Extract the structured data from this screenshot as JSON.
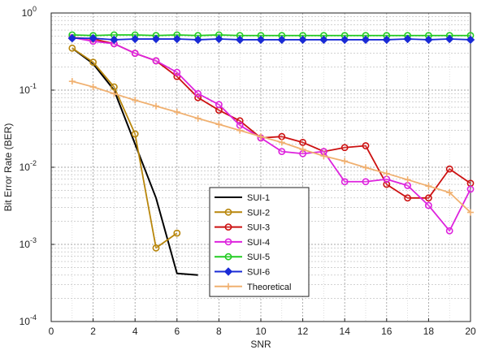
{
  "chart_data": {
    "type": "line",
    "title": "",
    "xlabel": "SNR",
    "ylabel": "Bit Error Rate (BER)",
    "xscale": "linear",
    "yscale": "log",
    "xlim": [
      0,
      20
    ],
    "ylim": [
      0.0001,
      1
    ],
    "grid": true,
    "legend_position": "lower-center",
    "x_ticks": [
      0,
      2,
      4,
      6,
      8,
      10,
      12,
      14,
      16,
      18,
      20
    ],
    "y_ticks": [
      {
        "value": 0.0001,
        "base": "10",
        "exp": "-4"
      },
      {
        "value": 0.001,
        "base": "10",
        "exp": "-3"
      },
      {
        "value": 0.01,
        "base": "10",
        "exp": "-2"
      },
      {
        "value": 0.1,
        "base": "10",
        "exp": "-1"
      },
      {
        "value": 1,
        "base": "10",
        "exp": "0"
      }
    ],
    "series": [
      {
        "name": "SUI-1",
        "color": "#000000",
        "marker": "none",
        "x": [
          1,
          2,
          3,
          4,
          5,
          6,
          7
        ],
        "y": [
          0.35,
          0.22,
          0.1,
          0.02,
          0.004,
          0.00042,
          0.0004
        ]
      },
      {
        "name": "SUI-2",
        "color": "#b8860b",
        "marker": "circle",
        "x": [
          1,
          2,
          3,
          4,
          5,
          6
        ],
        "y": [
          0.35,
          0.23,
          0.11,
          0.027,
          0.0009,
          0.0014
        ]
      },
      {
        "name": "SUI-3",
        "color": "#cc1111",
        "marker": "circle",
        "x": [
          1,
          2,
          3,
          4,
          5,
          6,
          7,
          8,
          9,
          10,
          11,
          12,
          13,
          14,
          15,
          16,
          17,
          18,
          19,
          20
        ],
        "y": [
          0.48,
          0.46,
          0.4,
          0.3,
          0.24,
          0.15,
          0.08,
          0.055,
          0.04,
          0.024,
          0.025,
          0.021,
          0.016,
          0.018,
          0.019,
          0.006,
          0.004,
          0.004,
          0.0095,
          0.0062
        ]
      },
      {
        "name": "SUI-4",
        "color": "#dd22dd",
        "marker": "circle",
        "x": [
          1,
          2,
          3,
          4,
          5,
          6,
          7,
          8,
          9,
          10,
          11,
          12,
          13,
          14,
          15,
          16,
          17,
          18,
          19,
          20
        ],
        "y": [
          0.48,
          0.43,
          0.4,
          0.3,
          0.24,
          0.17,
          0.09,
          0.065,
          0.035,
          0.024,
          0.016,
          0.015,
          0.016,
          0.0065,
          0.0065,
          0.007,
          0.0058,
          0.0032,
          0.0015,
          0.0052
        ]
      },
      {
        "name": "SUI-5",
        "color": "#22cc22",
        "marker": "circle",
        "x": [
          1,
          2,
          3,
          4,
          5,
          6,
          7,
          8,
          9,
          10,
          11,
          12,
          13,
          14,
          15,
          16,
          17,
          18,
          19,
          20
        ],
        "y": [
          0.52,
          0.51,
          0.52,
          0.52,
          0.51,
          0.52,
          0.51,
          0.52,
          0.51,
          0.51,
          0.51,
          0.51,
          0.51,
          0.51,
          0.51,
          0.51,
          0.51,
          0.51,
          0.51,
          0.51
        ]
      },
      {
        "name": "SUI-6",
        "color": "#1a2bd6",
        "marker": "diamond",
        "x": [
          1,
          2,
          3,
          4,
          5,
          6,
          7,
          8,
          9,
          10,
          11,
          12,
          13,
          14,
          15,
          16,
          17,
          18,
          19,
          20
        ],
        "y": [
          0.47,
          0.47,
          0.45,
          0.46,
          0.46,
          0.46,
          0.45,
          0.46,
          0.45,
          0.45,
          0.45,
          0.45,
          0.45,
          0.45,
          0.45,
          0.45,
          0.46,
          0.45,
          0.46,
          0.45
        ]
      },
      {
        "name": "Theoretical",
        "color": "#f0b070",
        "marker": "plus",
        "x": [
          1,
          2,
          3,
          4,
          5,
          6,
          7,
          8,
          9,
          10,
          11,
          12,
          13,
          14,
          15,
          16,
          17,
          18,
          19,
          20
        ],
        "y": [
          0.13,
          0.11,
          0.09,
          0.074,
          0.062,
          0.052,
          0.043,
          0.036,
          0.03,
          0.025,
          0.021,
          0.017,
          0.014,
          0.012,
          0.0099,
          0.0083,
          0.0069,
          0.0057,
          0.0047,
          0.0026
        ]
      }
    ]
  }
}
